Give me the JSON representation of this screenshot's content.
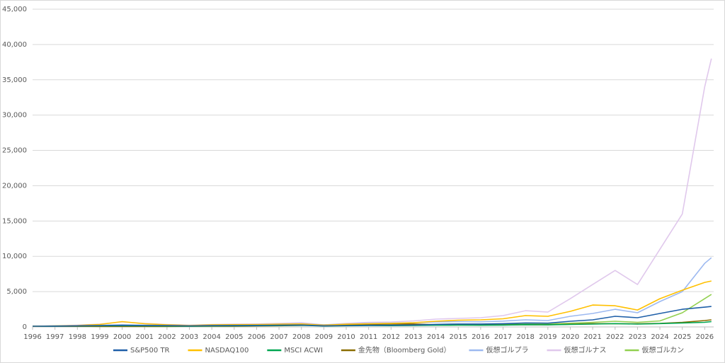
{
  "chart_data": {
    "type": "line",
    "x": [
      1996,
      1997,
      1998,
      1999,
      2000,
      2001,
      2002,
      2003,
      2004,
      2005,
      2006,
      2007,
      2008,
      2009,
      2010,
      2011,
      2012,
      2013,
      2014,
      2015,
      2016,
      2017,
      2018,
      2019,
      2020,
      2021,
      2022,
      2023,
      2024,
      2025,
      2026,
      2026.3
    ],
    "xlim": [
      1996,
      2026.4
    ],
    "xticks": [
      1996,
      1997,
      1998,
      1999,
      2000,
      2001,
      2002,
      2003,
      2004,
      2005,
      2006,
      2007,
      2008,
      2009,
      2010,
      2011,
      2012,
      2013,
      2014,
      2015,
      2016,
      2017,
      2018,
      2019,
      2020,
      2021,
      2022,
      2023,
      2024,
      2025,
      2026
    ],
    "ylim": [
      0,
      45000
    ],
    "yticks": [
      0,
      {
        "value": 5000,
        "label": "5,000"
      },
      {
        "value": 10000,
        "label": "10,000"
      },
      {
        "value": 15000,
        "label": "15,000"
      },
      {
        "value": 20000,
        "label": "20,000"
      },
      {
        "value": 25000,
        "label": "25,000"
      },
      {
        "value": 30000,
        "label": "30,000"
      },
      {
        "value": 35000,
        "label": "35,000"
      },
      {
        "value": 40000,
        "label": "40,000"
      },
      {
        "value": 45000,
        "label": "45,000"
      }
    ],
    "grid": true,
    "legend": "bottom",
    "series": [
      {
        "name": "S&P500 TR",
        "color": "#1f5fa8",
        "values": [
          100,
          122,
          160,
          200,
          240,
          215,
          190,
          150,
          190,
          210,
          220,
          255,
          270,
          160,
          200,
          235,
          240,
          275,
          360,
          410,
          410,
          460,
          560,
          530,
          800,
          1000,
          1500,
          1300,
          1900,
          2500,
          2800,
          2900
        ]
      },
      {
        "name": "NASDAQ100",
        "color": "#ffc000",
        "values": [
          100,
          150,
          200,
          350,
          750,
          450,
          300,
          200,
          300,
          320,
          330,
          380,
          420,
          250,
          380,
          450,
          500,
          600,
          800,
          950,
          1000,
          1150,
          1600,
          1500,
          2200,
          3100,
          3000,
          2400,
          4000,
          5200,
          6300,
          6500
        ]
      },
      {
        "name": "MSCI ACWI",
        "color": "#00a651",
        "values": [
          100,
          110,
          130,
          150,
          170,
          150,
          130,
          110,
          140,
          160,
          180,
          210,
          230,
          130,
          170,
          190,
          180,
          200,
          240,
          250,
          240,
          260,
          320,
          290,
          350,
          400,
          470,
          400,
          470,
          560,
          650,
          750
        ]
      },
      {
        "name": "金先物（Bloomberg Gold）",
        "color": "#8b6d00",
        "values": [
          100,
          95,
          80,
          75,
          75,
          70,
          75,
          90,
          100,
          110,
          140,
          170,
          220,
          230,
          290,
          360,
          420,
          420,
          310,
          300,
          270,
          300,
          310,
          300,
          380,
          470,
          450,
          440,
          490,
          640,
          900,
          1000
        ]
      },
      {
        "name": "仮想ゴルプラ",
        "color": "#9db9f0",
        "values": [
          100,
          130,
          170,
          230,
          280,
          250,
          230,
          200,
          260,
          300,
          330,
          400,
          450,
          280,
          400,
          500,
          530,
          600,
          700,
          750,
          720,
          820,
          1000,
          900,
          1500,
          1900,
          2500,
          2000,
          3600,
          5000,
          9000,
          9800
        ]
      },
      {
        "name": "仮想ゴルナス",
        "color": "#e0c8ec",
        "values": [
          100,
          150,
          250,
          400,
          700,
          500,
          350,
          250,
          350,
          400,
          420,
          500,
          600,
          300,
          500,
          650,
          700,
          850,
          1100,
          1200,
          1300,
          1600,
          2300,
          2100,
          4000,
          6000,
          8000,
          6000,
          11000,
          16000,
          34000,
          38000
        ]
      },
      {
        "name": "仮想ゴルカン",
        "color": "#92d050",
        "values": [
          100,
          110,
          130,
          150,
          170,
          150,
          130,
          120,
          150,
          170,
          200,
          240,
          270,
          170,
          220,
          250,
          250,
          280,
          330,
          340,
          330,
          370,
          450,
          420,
          520,
          650,
          800,
          650,
          850,
          2000,
          4000,
          4600
        ]
      }
    ]
  }
}
